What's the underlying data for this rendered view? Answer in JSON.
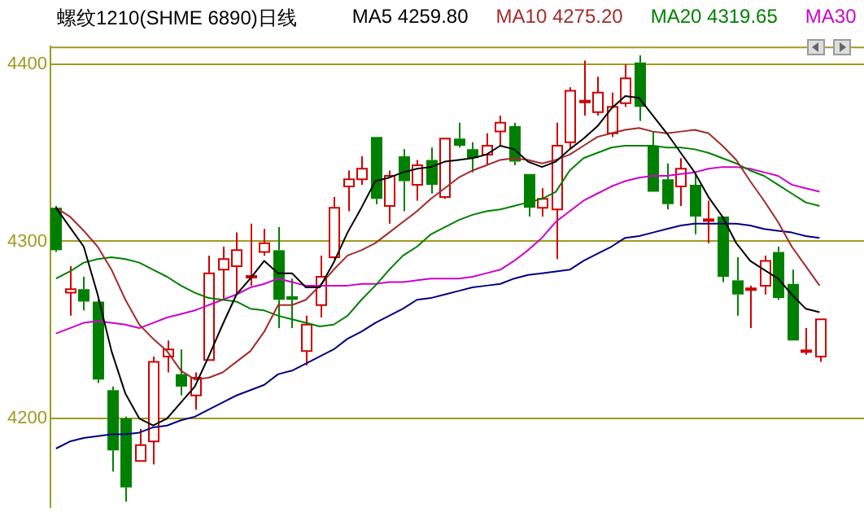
{
  "chart_data": {
    "type": "candlestick",
    "title": "螺纹1210(SHME 6890)日线",
    "categories": [
      null,
      null,
      null,
      null,
      null,
      null,
      null,
      null,
      null,
      null,
      null,
      null,
      null,
      null,
      null,
      null,
      null,
      null,
      null,
      null,
      null,
      null,
      null,
      null,
      null,
      null,
      null,
      null,
      null,
      null,
      null,
      null,
      null,
      null,
      null,
      null,
      null,
      null,
      null,
      null,
      null,
      null,
      null,
      null,
      null,
      null,
      null,
      null,
      null,
      null,
      null,
      null,
      null,
      null,
      null,
      null
    ],
    "ohlc": [
      [
        4319,
        4320,
        4294,
        4295
      ],
      [
        4271,
        4286,
        4258,
        4273
      ],
      [
        4273,
        4280,
        4261,
        4266
      ],
      [
        4266,
        4267,
        4220,
        4222
      ],
      [
        4216,
        4218,
        4170,
        4182
      ],
      [
        4200,
        4201,
        4153,
        4161
      ],
      [
        4176,
        4194,
        4176,
        4185
      ],
      [
        4187,
        4235,
        4174,
        4232
      ],
      [
        4235,
        4244,
        4226,
        4239
      ],
      [
        4225,
        4239,
        4213,
        4218
      ],
      [
        4213,
        4226,
        4205,
        4223
      ],
      [
        4233,
        4292,
        4233,
        4282
      ],
      [
        4284,
        4297,
        4267,
        4290
      ],
      [
        4286,
        4305,
        4270,
        4295
      ],
      [
        4280,
        4310,
        4275,
        4280
      ],
      [
        4294,
        4307,
        4292,
        4299
      ],
      [
        4295,
        4308,
        4251,
        4267
      ],
      [
        4269,
        4279,
        4251,
        4267
      ],
      [
        4238,
        4258,
        4230,
        4253
      ],
      [
        4264,
        4292,
        4257,
        4280
      ],
      [
        4291,
        4325,
        4290,
        4319
      ],
      [
        4331,
        4340,
        4317,
        4335
      ],
      [
        4335,
        4348,
        4332,
        4341
      ],
      [
        4359,
        4359,
        4321,
        4324
      ],
      [
        4320,
        4340,
        4310,
        4337
      ],
      [
        4348,
        4352,
        4317,
        4334
      ],
      [
        4332,
        4346,
        4323,
        4343
      ],
      [
        4346,
        4353,
        4327,
        4332
      ],
      [
        4325,
        4358,
        4324,
        4358
      ],
      [
        4358,
        4367,
        4353,
        4354
      ],
      [
        4352,
        4356,
        4339,
        4347
      ],
      [
        4349,
        4361,
        4343,
        4354
      ],
      [
        4362,
        4371,
        4354,
        4367
      ],
      [
        4365,
        4367,
        4343,
        4345
      ],
      [
        4338,
        4338,
        4314,
        4319
      ],
      [
        4319,
        4330,
        4314,
        4324
      ],
      [
        4318,
        4367,
        4290,
        4354
      ],
      [
        4356,
        4387,
        4352,
        4385
      ],
      [
        4379,
        4402,
        4371,
        4379
      ],
      [
        4373,
        4393,
        4371,
        4384
      ],
      [
        4361,
        4384,
        4359,
        4376
      ],
      [
        4378,
        4400,
        4376,
        4392
      ],
      [
        4401,
        4405,
        4368,
        4376
      ],
      [
        4354,
        4362,
        4328,
        4328
      ],
      [
        4335,
        4344,
        4318,
        4321
      ],
      [
        4331,
        4347,
        4320,
        4341
      ],
      [
        4332,
        4339,
        4304,
        4314
      ],
      [
        4312,
        4323,
        4299,
        4312
      ],
      [
        4314,
        4314,
        4277,
        4280
      ],
      [
        4278,
        4291,
        4258,
        4270
      ],
      [
        4273,
        4275,
        4251,
        4273
      ],
      [
        4275,
        4292,
        4270,
        4289
      ],
      [
        4294,
        4297,
        4267,
        4268
      ],
      [
        4276,
        4284,
        4244,
        4244
      ],
      [
        4238,
        4251,
        4236,
        4238
      ],
      [
        4235,
        4256,
        4232,
        4256
      ]
    ],
    "series": [
      {
        "type": "line",
        "name": "MA5 4259.80",
        "color": "#000000",
        "values": [
          4319,
          4308,
          4297,
          4270,
          4238,
          4214,
          4200,
          4196,
          4200,
          4209,
          4218,
          4235,
          4253,
          4270,
          4279,
          4289,
          4282,
          4282,
          4274,
          4274,
          4288,
          4305,
          4319,
          4334,
          4336,
          4339,
          4341,
          4342,
          4345,
          4346,
          4347,
          4349,
          4354,
          4352,
          4345,
          4342,
          4345,
          4352,
          4358,
          4365,
          4375,
          4382,
          4381,
          4371,
          4361,
          4350,
          4339,
          4325,
          4314,
          4299,
          4289,
          4284,
          4279,
          4270,
          4262,
          4260
        ]
      },
      {
        "type": "line",
        "name": "MA10 4275.20",
        "color": "#a52a2a",
        "values": [
          4319,
          4314,
          4306,
          4297,
          4284,
          4267,
          4253,
          4245,
          4238,
          4227,
          4222,
          4223,
          4226,
          4232,
          4238,
          4249,
          4264,
          4264,
          4267,
          4275,
          4284,
          4292,
          4295,
          4299,
          4305,
          4311,
          4317,
          4324,
          4330,
          4336,
          4340,
          4343,
          4346,
          4347,
          4346,
          4344,
          4346,
          4349,
          4354,
          4359,
          4361,
          4363,
          4364,
          4362,
          4361,
          4362,
          4363,
          4361,
          4354,
          4346,
          4334,
          4323,
          4311,
          4297,
          4286,
          4275
        ]
      },
      {
        "type": "line",
        "name": "MA20 4319.65",
        "color": "#008000",
        "values": [
          4279,
          4283,
          4288,
          4290,
          4291,
          4290,
          4288,
          4284,
          4280,
          4275,
          4271,
          4268,
          4267,
          4266,
          4262,
          4261,
          4258,
          4256,
          4254,
          4252,
          4253,
          4258,
          4267,
          4275,
          4284,
          4292,
          4297,
          4304,
          4308,
          4312,
          4315,
          4317,
          4318,
          4320,
          4322,
          4324,
          4328,
          4340,
          4347,
          4350,
          4353,
          4354,
          4354,
          4354,
          4353,
          4353,
          4352,
          4350,
          4347,
          4344,
          4340,
          4337,
          4332,
          4327,
          4322,
          4320
        ]
      },
      {
        "type": "line",
        "name": "MA30",
        "color": "#cc00cc",
        "values": [
          4248,
          4251,
          4254,
          4255,
          4254,
          4253,
          4251,
          4254,
          4257,
          4259,
          4261,
          4264,
          4267,
          4270,
          4274,
          4276,
          4279,
          4277,
          4275,
          4275,
          4275,
          4275,
          4276,
          4276,
          4277,
          4277,
          4278,
          4279,
          4279,
          4279,
          4280,
          4282,
          4284,
          4289,
          4295,
          4302,
          4311,
          4317,
          4323,
          4327,
          4331,
          4334,
          4336,
          4337,
          4337,
          4338,
          4339,
          4341,
          4342,
          4342,
          4341,
          4339,
          4337,
          4332,
          4330,
          4328
        ]
      },
      {
        "type": "line",
        "color": "#000080",
        "values": [
          4183,
          4187,
          4189,
          4190,
          4191,
          4191,
          4192,
          4195,
          4196,
          4199,
          4201,
          4205,
          4209,
          4213,
          4216,
          4219,
          4225,
          4227,
          4231,
          4235,
          4239,
          4245,
          4249,
          4254,
          4258,
          4262,
          4267,
          4268,
          4270,
          4272,
          4274,
          4275,
          4276,
          4279,
          4281,
          4282,
          4283,
          4284,
          4289,
          4293,
          4297,
          4302,
          4303,
          4305,
          4307,
          4309,
          4310,
          4310,
          4310,
          4310,
          4309,
          4307,
          4306,
          4305,
          4303,
          4302
        ]
      }
    ],
    "ylim": [
      4150,
      4410
    ],
    "yticks": [
      4200,
      4300,
      4400
    ],
    "grid": "y",
    "tick_labels": "y",
    "legend": "top"
  }
}
